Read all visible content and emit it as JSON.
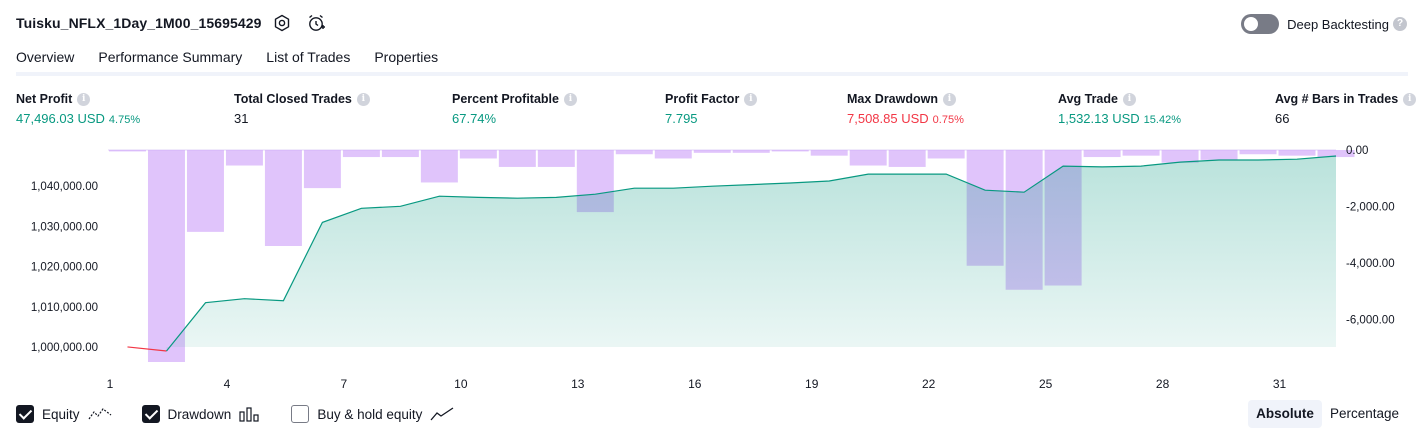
{
  "header": {
    "title": "Tuisku_NFLX_1Day_1M00_15695429",
    "deep_backtesting_label": "Deep Backtesting",
    "deep_backtesting_on": false
  },
  "tabs": [
    {
      "label": "Overview",
      "active": true
    },
    {
      "label": "Performance Summary",
      "active": false
    },
    {
      "label": "List of Trades",
      "active": false
    },
    {
      "label": "Properties",
      "active": false
    }
  ],
  "stats": {
    "net_profit": {
      "label": "Net Profit",
      "value": "47,496.03 USD",
      "sub": "4.75%"
    },
    "total_closed_trades": {
      "label": "Total Closed Trades",
      "value": "31"
    },
    "percent_profitable": {
      "label": "Percent Profitable",
      "value": "67.74%"
    },
    "profit_factor": {
      "label": "Profit Factor",
      "value": "7.795"
    },
    "max_drawdown": {
      "label": "Max Drawdown",
      "value": "7,508.85 USD",
      "sub": "0.75%"
    },
    "avg_trade": {
      "label": "Avg Trade",
      "value": "1,532.13 USD",
      "sub": "15.42%"
    },
    "avg_bars": {
      "label": "Avg # Bars in Trades",
      "value": "66"
    }
  },
  "chart_data": {
    "type": "area",
    "x_ticks": [
      "1",
      "4",
      "7",
      "10",
      "13",
      "16",
      "19",
      "22",
      "25",
      "28",
      "31"
    ],
    "left_axis_ticks": [
      "1,040,000.00",
      "1,030,000.00",
      "1,020,000.00",
      "1,010,000.00",
      "1,000,000.00"
    ],
    "right_axis_ticks": [
      "0.00",
      "-2,000.00",
      "-4,000.00",
      "-6,000.00"
    ],
    "equity": {
      "name": "Equity",
      "x": [
        1,
        2,
        3,
        4,
        5,
        6,
        7,
        8,
        9,
        10,
        11,
        12,
        13,
        14,
        15,
        16,
        17,
        18,
        19,
        20,
        21,
        22,
        23,
        24,
        25,
        26,
        27,
        28,
        29,
        30,
        31,
        32
      ],
      "values": [
        1000000,
        999000,
        1011000,
        1012000,
        1011500,
        1031000,
        1034500,
        1035000,
        1037500,
        1037200,
        1037000,
        1037200,
        1038000,
        1039500,
        1039500,
        1040000,
        1040400,
        1040800,
        1041300,
        1043000,
        1043000,
        1043000,
        1039000,
        1038500,
        1045000,
        1044800,
        1045000,
        1046000,
        1046500,
        1046500,
        1046700,
        1047496
      ],
      "color": "#089981"
    },
    "drawdown": {
      "name": "Drawdown",
      "values": [
        -50,
        -7509,
        -2900,
        -550,
        -3400,
        -1350,
        -250,
        -250,
        -1150,
        -300,
        -600,
        -600,
        -2200,
        -150,
        -300,
        -100,
        -100,
        -50,
        -200,
        -550,
        -600,
        -300,
        -4100,
        -4950,
        -4800,
        -250,
        -200,
        -450,
        -350,
        -150,
        -200,
        -250
      ],
      "color": "#b388ff"
    },
    "left_ylim": [
      998000,
      1049000
    ],
    "right_ylim": [
      -7509,
      0
    ]
  },
  "legend": {
    "equity": {
      "label": "Equity",
      "checked": true
    },
    "drawdown": {
      "label": "Drawdown",
      "checked": true
    },
    "buy_hold": {
      "label": "Buy & hold equity",
      "checked": false
    }
  },
  "view_toggle": {
    "absolute": "Absolute",
    "percentage": "Percentage",
    "active": "absolute"
  },
  "icon_names": [
    "settings-icon",
    "add-alert-icon",
    "info-icon",
    "equity-line-icon",
    "drawdown-bars-icon",
    "buy-hold-line-icon"
  ]
}
